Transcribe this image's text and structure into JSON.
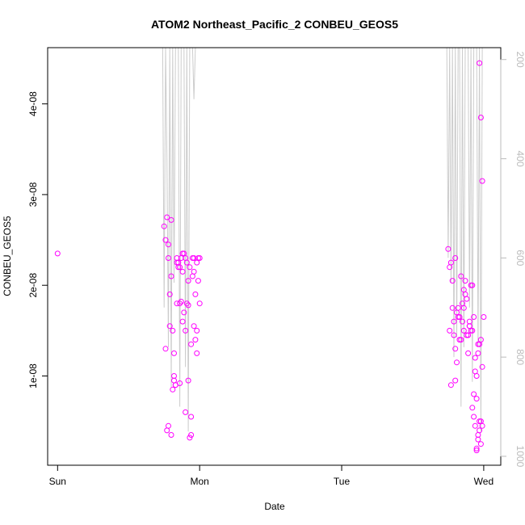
{
  "chart_data": {
    "type": "scatter",
    "title": "ATOM2 Northeast_Pacific_2 CONBEU_GEOS5",
    "xlabel": "Date",
    "ylabel": "CONBEU_GEOS5",
    "x_ticks": [
      {
        "x": 0,
        "label": "Sun"
      },
      {
        "x": 1,
        "label": "Mon"
      },
      {
        "x": 2,
        "label": "Tue"
      },
      {
        "x": 3,
        "label": "Wed"
      }
    ],
    "y_ticks": [
      {
        "y": 1e-08,
        "label": "1e-08"
      },
      {
        "y": 2e-08,
        "label": "2e-08"
      },
      {
        "y": 3e-08,
        "label": "3e-08"
      },
      {
        "y": 4e-08,
        "label": "4e-08"
      }
    ],
    "y2_ticks": [
      {
        "y": 200,
        "label": "200"
      },
      {
        "y": 400,
        "label": "400"
      },
      {
        "y": 600,
        "label": "600"
      },
      {
        "y": 800,
        "label": "800"
      },
      {
        "y": 1000,
        "label": "1000"
      }
    ],
    "xlim": [
      -0.07,
      3.12
    ],
    "ylim": [
      1.6e-10,
      4.62e-08
    ],
    "y2lim": [
      1018,
      176
    ],
    "grid": false,
    "colors": {
      "points": "#ff00ff",
      "pressure": "#cccccc"
    },
    "series": [
      {
        "marker": "open-circle",
        "axis": "left",
        "x": [
          0.0,
          0.75,
          0.76,
          0.77,
          0.78,
          0.79,
          0.8,
          0.81,
          0.82,
          0.83,
          0.84,
          0.85,
          0.86,
          0.87,
          0.88,
          0.89,
          0.9,
          0.91,
          0.92,
          0.93,
          0.94,
          0.95,
          0.96,
          0.97,
          0.98,
          0.99,
          0.76,
          0.78,
          0.8,
          0.82,
          0.84,
          0.86,
          0.88,
          0.9,
          0.92,
          0.94,
          0.96,
          0.98,
          1.0,
          0.77,
          0.79,
          0.81,
          0.83,
          0.85,
          0.87,
          0.89,
          0.91,
          0.93,
          0.95,
          0.97,
          0.99,
          0.8,
          0.82,
          0.86,
          0.9,
          0.94,
          0.98,
          0.78,
          0.84,
          0.88,
          0.92,
          0.96,
          1.0,
          2.75,
          2.76,
          2.77,
          2.78,
          2.79,
          2.8,
          2.81,
          2.82,
          2.83,
          2.84,
          2.85,
          2.86,
          2.87,
          2.88,
          2.89,
          2.9,
          2.91,
          2.92,
          2.93,
          2.94,
          2.95,
          2.96,
          2.97,
          2.98,
          2.99,
          3.0,
          2.76,
          2.78,
          2.8,
          2.82,
          2.84,
          2.86,
          2.88,
          2.9,
          2.92,
          2.94,
          2.96,
          2.98,
          2.77,
          2.79,
          2.81,
          2.83,
          2.85,
          2.87,
          2.89,
          2.91,
          2.93,
          2.95,
          2.97,
          2.99,
          2.94,
          2.95,
          2.96,
          2.97,
          2.98,
          2.99,
          2.95,
          2.96,
          2.97,
          2.98,
          2.92,
          2.93,
          2.8,
          2.86,
          2.9
        ],
        "y": [
          2.35e-08,
          2.65e-08,
          2.5e-08,
          2.75e-08,
          2.3e-08,
          1.55e-08,
          2.1e-08,
          8.5e-09,
          9.5e-09,
          9e-09,
          2.25e-08,
          2.2e-08,
          1.8e-08,
          2.3e-08,
          2.35e-08,
          1.7e-08,
          1.5e-08,
          2.25e-08,
          1.78e-08,
          2.2e-08,
          1.35e-08,
          2.3e-08,
          1.55e-08,
          1.4e-08,
          1.25e-08,
          2.3e-08,
          1.3e-08,
          4.5e-09,
          3.5e-09,
          1e-08,
          1.8e-08,
          2.2e-08,
          2.15e-08,
          2.3e-08,
          9.5e-09,
          5.5e-09,
          2.15e-08,
          2.25e-08,
          2.3e-08,
          4e-09,
          1.9e-08,
          1.5e-08,
          9e-09,
          2.25e-08,
          1.82e-08,
          2.35e-08,
          1.8e-08,
          3.2e-09,
          2.1e-08,
          1.9e-08,
          2.05e-08,
          2.72e-08,
          1.25e-08,
          9.2e-09,
          6e-09,
          3.5e-09,
          1.5e-08,
          2.45e-08,
          2.3e-08,
          1.6e-08,
          2.05e-08,
          2.3e-08,
          1.8e-08,
          2.4e-08,
          1.5e-08,
          2.25e-08,
          2.05e-08,
          1.45e-08,
          1.3e-08,
          1.15e-08,
          1.75e-08,
          1.65e-08,
          1.4e-08,
          1.6e-08,
          1.5e-08,
          2.05e-08,
          1.85e-08,
          1.45e-08,
          1.55e-08,
          2e-08,
          1.5e-08,
          1.65e-08,
          1.2e-08,
          1e-08,
          1.35e-08,
          4.45e-08,
          3.85e-08,
          3.15e-08,
          1.65e-08,
          2.2e-08,
          1.75e-08,
          2.3e-08,
          1.65e-08,
          2.1e-08,
          1.95e-08,
          1.45e-08,
          1.6e-08,
          2e-08,
          1.05e-08,
          1.25e-08,
          1.4e-08,
          9e-09,
          1.6e-08,
          1.7e-08,
          1.4e-08,
          1.8e-08,
          1.9e-08,
          1.25e-08,
          1.5e-08,
          8e-09,
          7.5e-09,
          1.35e-08,
          1.1e-08,
          4.5e-09,
          2e-09,
          3.5e-09,
          5e-09,
          2.5e-09,
          4.5e-09,
          1.8e-09,
          3e-09,
          4e-09,
          5e-09,
          6.5e-09,
          5.5e-09,
          9.5e-09,
          1.75e-08,
          1.55e-08
        ]
      },
      {
        "name": "",
        "type": "line",
        "axis": "right",
        "x": [
          0.74,
          0.75,
          0.76,
          0.77,
          0.78,
          0.79,
          0.8,
          0.81,
          0.82,
          0.83,
          0.84,
          0.85,
          0.86,
          0.87,
          0.88,
          0.89,
          0.9,
          0.91,
          0.92,
          0.93,
          0.94,
          0.95,
          0.96,
          0.97,
          0.98,
          0.99,
          1.0,
          2.62,
          2.66,
          2.7,
          2.74,
          2.75,
          2.76,
          2.77,
          2.78,
          2.79,
          2.8,
          2.81,
          2.82,
          2.83,
          2.84,
          2.85,
          2.86,
          2.87,
          2.88,
          2.89,
          2.9,
          2.91,
          2.92,
          2.93,
          2.94,
          2.95,
          2.96,
          2.97,
          2.98,
          2.99,
          3.0,
          3.01
        ],
        "y": [
          176,
          700,
          176,
          400,
          780,
          176,
          860,
          176,
          650,
          176,
          176,
          176,
          900,
          176,
          176,
          176,
          820,
          176,
          950,
          176,
          176,
          176,
          280,
          176,
          176,
          176,
          176,
          176,
          176,
          176,
          176,
          600,
          176,
          650,
          176,
          800,
          176,
          760,
          176,
          176,
          900,
          176,
          780,
          176,
          176,
          176,
          700,
          176,
          850,
          176,
          176,
          176,
          780,
          176,
          950,
          176,
          176,
          176
        ]
      }
    ]
  }
}
